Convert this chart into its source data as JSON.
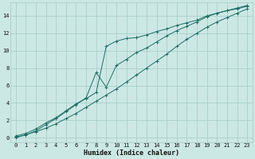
{
  "xlabel": "Humidex (Indice chaleur)",
  "ylabel": "",
  "bg_color": "#cce8e4",
  "grid_color": "#aacfcc",
  "line_color": "#1e6e65",
  "xlim": [
    -0.5,
    23.5
  ],
  "ylim": [
    -0.5,
    15.5
  ],
  "xticks": [
    0,
    1,
    2,
    3,
    4,
    5,
    6,
    7,
    8,
    9,
    10,
    11,
    12,
    13,
    14,
    15,
    16,
    17,
    18,
    19,
    20,
    21,
    22,
    23
  ],
  "yticks": [
    0,
    2,
    4,
    6,
    8,
    10,
    12,
    14
  ],
  "line1_x": [
    0,
    1,
    2,
    3,
    4,
    5,
    6,
    7,
    8,
    9,
    10,
    11,
    12,
    13,
    14,
    15,
    16,
    17,
    18,
    19,
    20,
    21,
    22,
    23
  ],
  "line1_y": [
    0.2,
    0.5,
    1.0,
    1.7,
    2.3,
    3.1,
    3.9,
    4.5,
    5.2,
    10.5,
    11.1,
    11.4,
    11.5,
    11.8,
    12.2,
    12.5,
    12.9,
    13.2,
    13.5,
    14.0,
    14.3,
    14.6,
    14.8,
    15.1
  ],
  "line2_x": [
    0,
    1,
    2,
    3,
    4,
    5,
    6,
    7,
    8,
    9,
    10,
    11,
    12,
    13,
    14,
    15,
    16,
    17,
    18,
    19,
    20,
    21,
    22,
    23
  ],
  "line2_y": [
    0.1,
    0.3,
    0.8,
    1.5,
    2.2,
    3.0,
    3.8,
    4.6,
    7.5,
    5.8,
    8.3,
    9.0,
    9.8,
    10.3,
    11.0,
    11.7,
    12.3,
    12.8,
    13.3,
    13.9,
    14.3,
    14.6,
    14.9,
    15.2
  ],
  "line3_x": [
    0,
    1,
    2,
    3,
    4,
    5,
    6,
    7,
    8,
    9,
    10,
    11,
    12,
    13,
    14,
    15,
    16,
    17,
    18,
    19,
    20,
    21,
    22,
    23
  ],
  "line3_y": [
    0.0,
    0.35,
    0.7,
    1.1,
    1.6,
    2.2,
    2.8,
    3.5,
    4.2,
    4.9,
    5.6,
    6.4,
    7.2,
    8.0,
    8.8,
    9.6,
    10.5,
    11.3,
    12.0,
    12.7,
    13.3,
    13.8,
    14.3,
    14.8
  ]
}
